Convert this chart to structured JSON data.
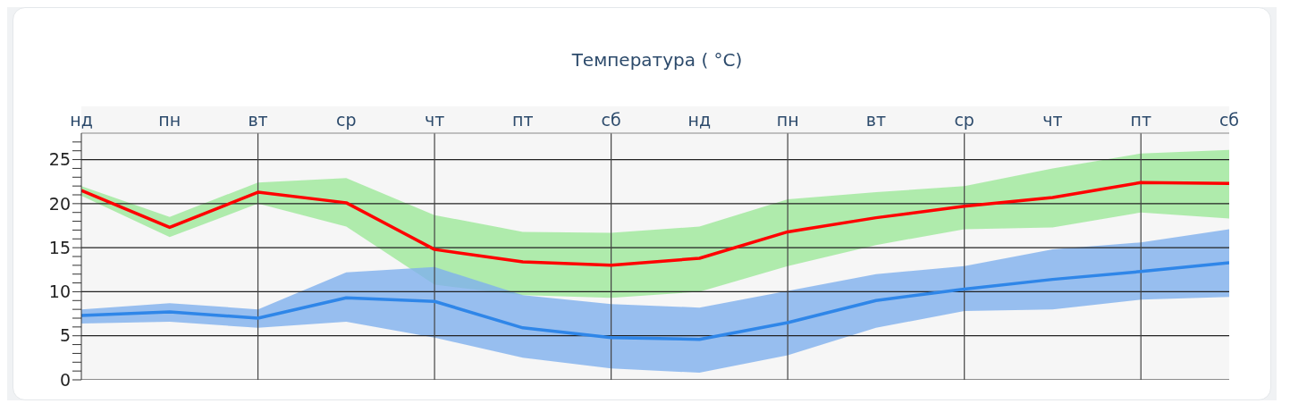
{
  "chart_data": {
    "type": "line",
    "title": "Температура ( °C)",
    "categories": [
      "нд",
      "пн",
      "вт",
      "ср",
      "чт",
      "пт",
      "сб",
      "нд",
      "пн",
      "вт",
      "ср",
      "чт",
      "пт",
      "сб"
    ],
    "series": [
      {
        "color": "#ff0000",
        "values": [
          21.5,
          17.3,
          21.3,
          20.1,
          14.8,
          13.4,
          13.0,
          13.8,
          16.8,
          18.4,
          19.7,
          20.7,
          22.4,
          22.3
        ],
        "lower": [
          20.9,
          16.2,
          20.0,
          17.4,
          10.8,
          9.6,
          9.3,
          10.0,
          12.9,
          15.3,
          17.1,
          17.3,
          19.0,
          18.3
        ],
        "upper": [
          22.0,
          18.5,
          22.4,
          22.9,
          18.7,
          16.8,
          16.7,
          17.4,
          20.5,
          21.3,
          22.0,
          24.0,
          25.7,
          26.1
        ]
      },
      {
        "color": "#2f86e8",
        "values": [
          7.3,
          7.7,
          7.0,
          9.3,
          8.9,
          5.9,
          4.8,
          4.6,
          6.5,
          9.0,
          10.3,
          11.4,
          12.3,
          13.3
        ],
        "lower": [
          6.4,
          6.6,
          5.9,
          6.6,
          4.8,
          2.5,
          1.3,
          0.8,
          2.8,
          5.9,
          7.8,
          8.0,
          9.1,
          9.4
        ],
        "upper": [
          8.0,
          8.7,
          8.0,
          12.2,
          12.8,
          9.6,
          8.6,
          8.2,
          10.1,
          12.0,
          12.9,
          14.8,
          15.6,
          17.1
        ]
      }
    ],
    "ylim": [
      0,
      28
    ],
    "yticks": [
      0,
      {
        "value": 1,
        "label": null
      },
      {
        "value": 2,
        "label": null
      },
      {
        "value": 3,
        "label": null
      },
      {
        "value": 4,
        "label": null
      },
      5,
      {
        "value": 6,
        "label": null
      },
      {
        "value": 7,
        "label": null
      },
      {
        "value": 8,
        "label": null
      },
      {
        "value": 9,
        "label": null
      },
      10,
      {
        "value": 11,
        "label": null
      },
      {
        "value": 12,
        "label": null
      },
      {
        "value": 13,
        "label": null
      },
      {
        "value": 14,
        "label": null
      },
      15,
      {
        "value": 16,
        "label": null
      },
      {
        "value": 17,
        "label": null
      },
      {
        "value": 18,
        "label": null
      },
      {
        "value": 19,
        "label": null
      },
      20,
      {
        "value": 21,
        "label": null
      },
      {
        "value": 22,
        "label": null
      },
      {
        "value": 23,
        "label": null
      },
      {
        "value": 24,
        "label": null
      },
      25,
      {
        "value": 26,
        "label": null
      },
      {
        "value": 27,
        "label": null
      }
    ],
    "grid": true,
    "legend": false,
    "marker": "none",
    "line_style": "solid"
  }
}
